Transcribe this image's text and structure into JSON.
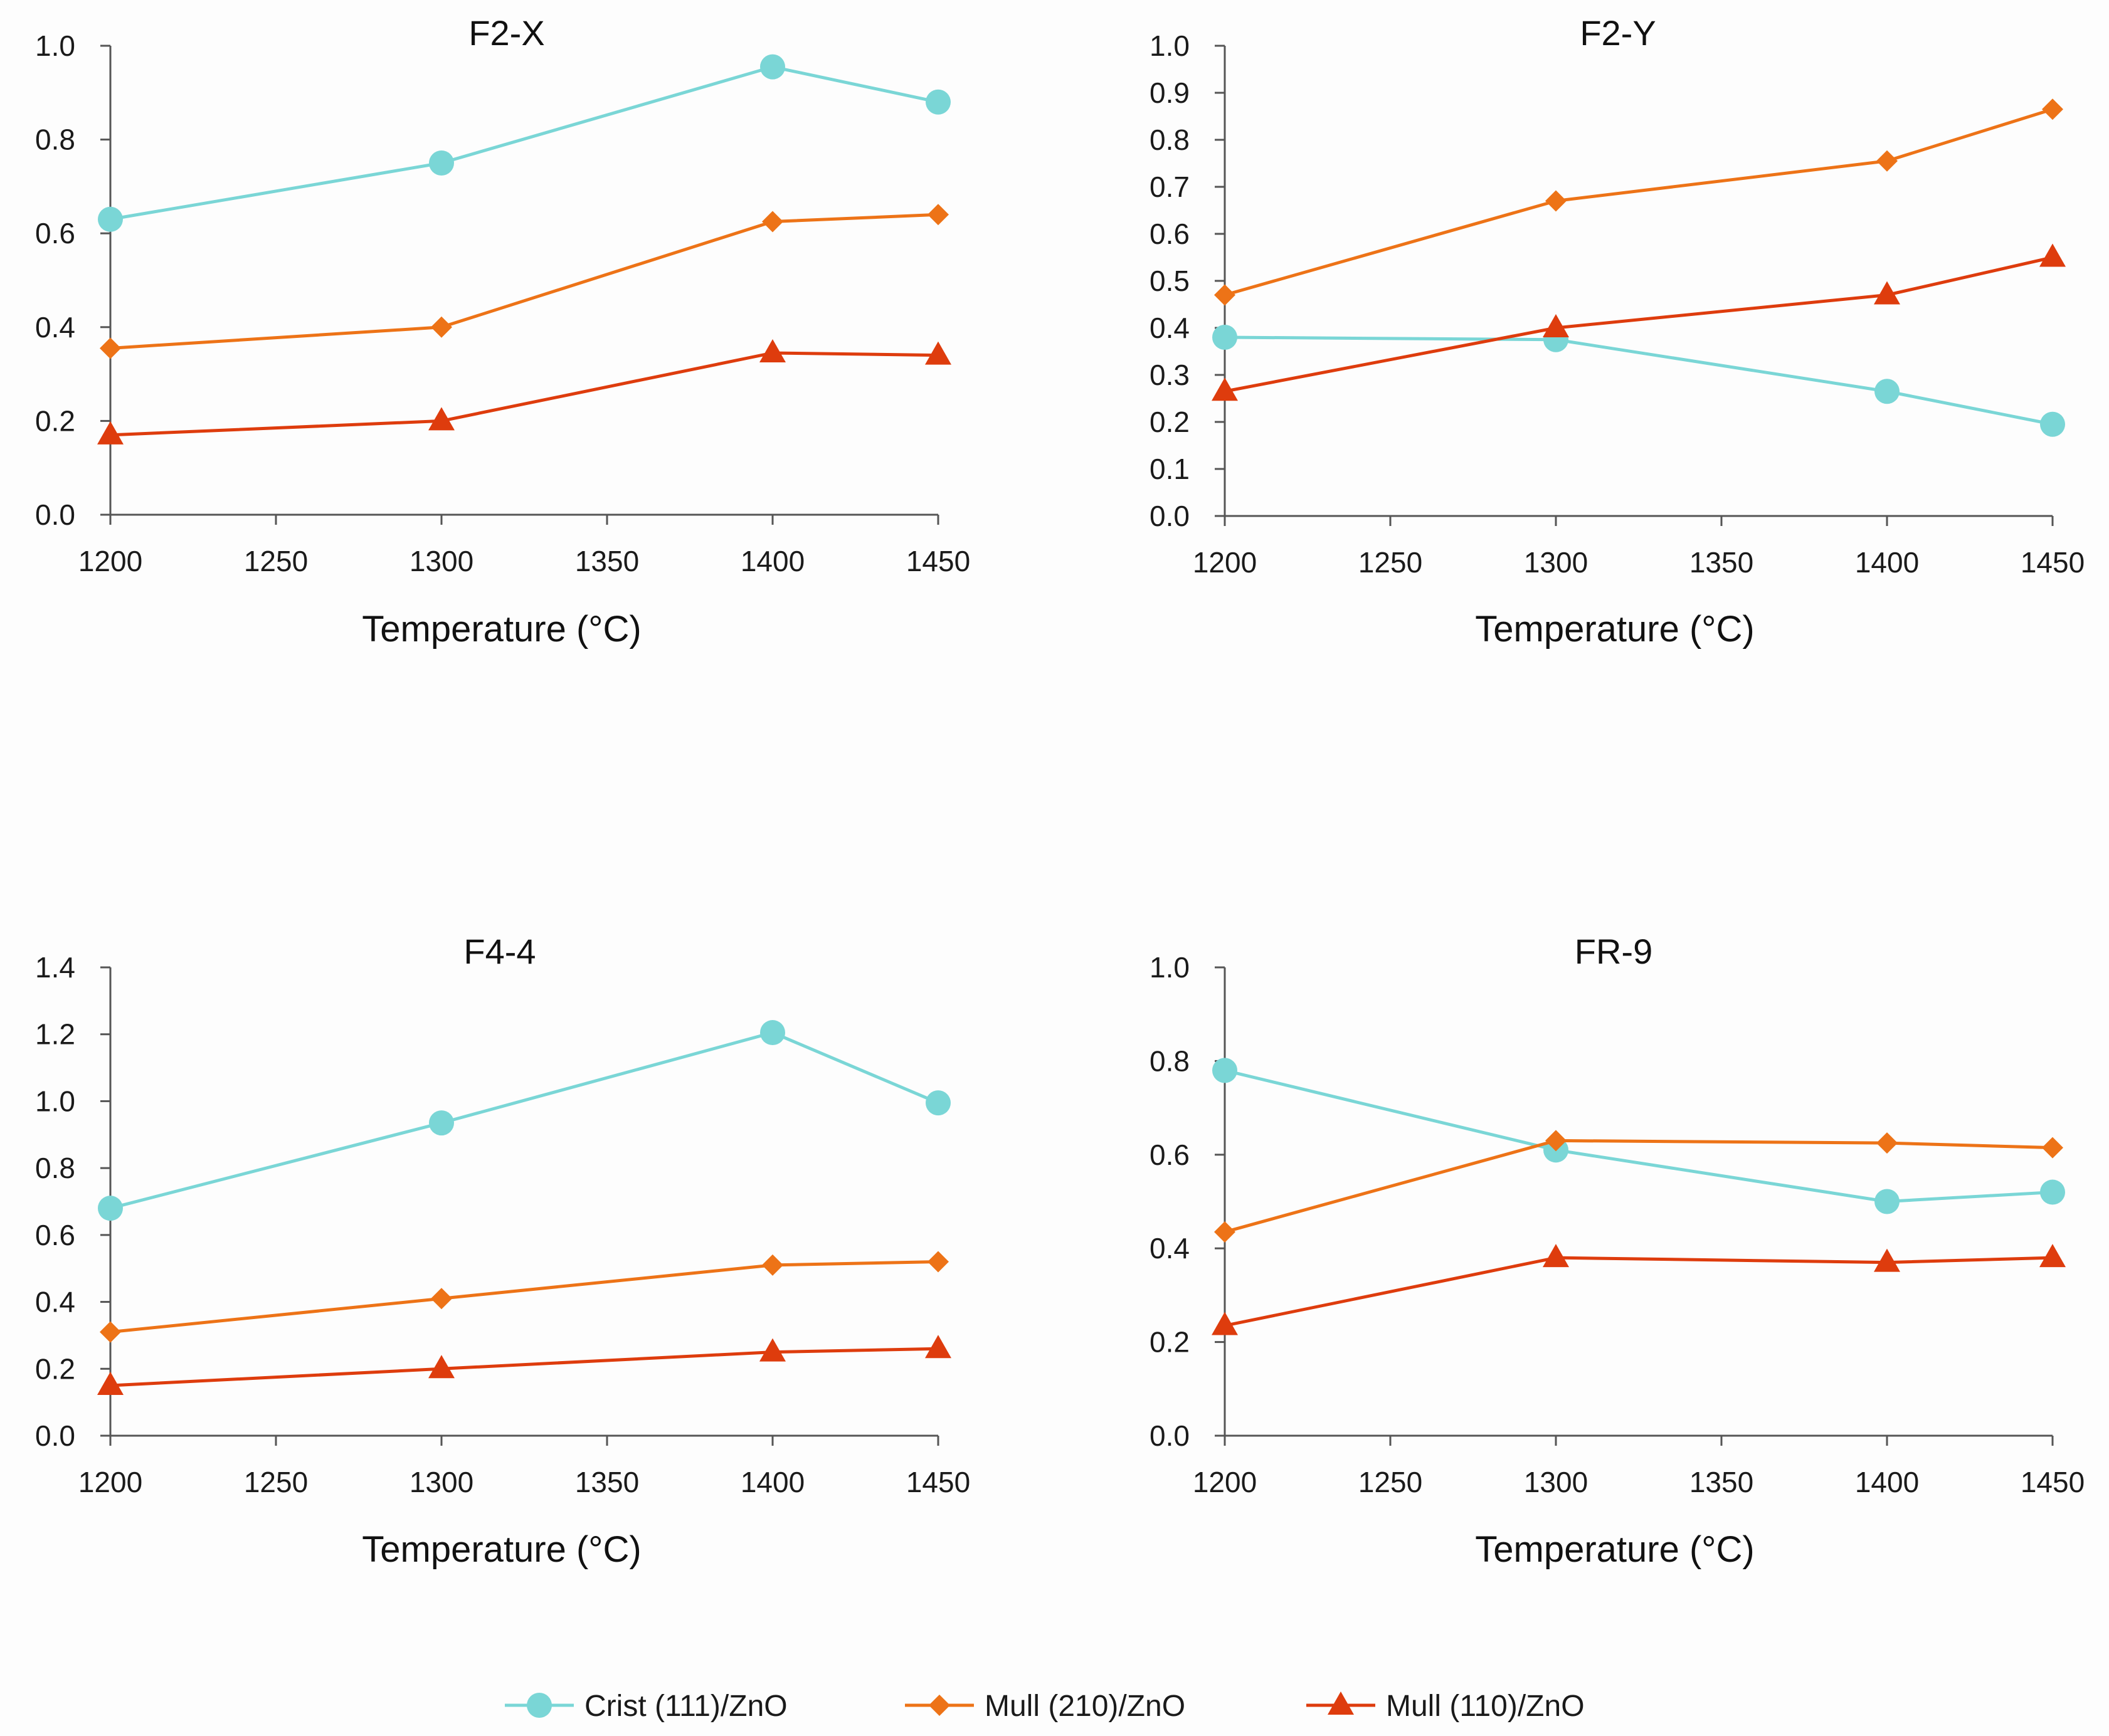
{
  "colors": {
    "crist": "#7ad6d6",
    "mull210": "#ed7317",
    "mull110": "#de3c0d",
    "axis": "#555555"
  },
  "legend": {
    "items": [
      {
        "label": "Crist (111)/ZnO",
        "marker": "circle",
        "color": "#7ad6d6"
      },
      {
        "label": "Mull (210)/ZnO",
        "marker": "diamond",
        "color": "#ed7317"
      },
      {
        "label": "Mull (110)/ZnO",
        "marker": "triangle",
        "color": "#de3c0d"
      }
    ]
  },
  "chart_data": [
    {
      "type": "line",
      "title": "F2-X",
      "xlabel": "Temperature (°C)",
      "ylabel": "",
      "x": [
        1200,
        1300,
        1400,
        1450
      ],
      "xticks": [
        1200,
        1250,
        1300,
        1350,
        1400,
        1450
      ],
      "xlim": [
        1200,
        1450
      ],
      "ylim": [
        0,
        1.0
      ],
      "yticks": [
        "0.0",
        "0.2",
        "0.4",
        "0.6",
        "0.8",
        "1.0"
      ],
      "series": [
        {
          "name": "Crist (111)/ZnO",
          "values": [
            0.63,
            0.75,
            0.955,
            0.88
          ]
        },
        {
          "name": "Mull (210)/ZnO",
          "values": [
            0.355,
            0.4,
            0.625,
            0.64
          ]
        },
        {
          "name": "Mull (110)/ZnO",
          "values": [
            0.17,
            0.2,
            0.345,
            0.34
          ]
        }
      ]
    },
    {
      "type": "line",
      "title": "F2-Y",
      "xlabel": "Temperature (°C)",
      "ylabel": "",
      "x": [
        1200,
        1300,
        1400,
        1450
      ],
      "xticks": [
        1200,
        1250,
        1300,
        1350,
        1400,
        1450
      ],
      "xlim": [
        1200,
        1450
      ],
      "ylim": [
        0,
        1.0
      ],
      "yticks": [
        "0.0",
        "0.1",
        "0.2",
        "0.3",
        "0.4",
        "0.5",
        "0.6",
        "0.7",
        "0.8",
        "0.9",
        "1.0"
      ],
      "series": [
        {
          "name": "Crist (111)/ZnO",
          "values": [
            0.38,
            0.375,
            0.265,
            0.195
          ]
        },
        {
          "name": "Mull (210)/ZnO",
          "values": [
            0.47,
            0.67,
            0.755,
            0.865
          ]
        },
        {
          "name": "Mull (110)/ZnO",
          "values": [
            0.265,
            0.4,
            0.47,
            0.55
          ]
        }
      ]
    },
    {
      "type": "line",
      "title": "F4-4",
      "xlabel": "Temperature (°C)",
      "ylabel": "",
      "x": [
        1200,
        1300,
        1400,
        1450
      ],
      "xticks": [
        1200,
        1250,
        1300,
        1350,
        1400,
        1450
      ],
      "xlim": [
        1200,
        1450
      ],
      "ylim": [
        0,
        1.4
      ],
      "yticks": [
        "0.0",
        "0.2",
        "0.4",
        "0.6",
        "0.8",
        "1.0",
        "1.2",
        "1.4"
      ],
      "series": [
        {
          "name": "Crist (111)/ZnO",
          "values": [
            0.68,
            0.935,
            1.205,
            0.995
          ]
        },
        {
          "name": "Mull (210)/ZnO",
          "values": [
            0.31,
            0.41,
            0.51,
            0.52
          ]
        },
        {
          "name": "Mull (110)/ZnO",
          "values": [
            0.15,
            0.2,
            0.25,
            0.26
          ]
        }
      ]
    },
    {
      "type": "line",
      "title": "FR-9",
      "xlabel": "Temperature (°C)",
      "ylabel": "",
      "x": [
        1200,
        1300,
        1400,
        1450
      ],
      "xticks": [
        1200,
        1250,
        1300,
        1350,
        1400,
        1450
      ],
      "xlim": [
        1200,
        1450
      ],
      "ylim": [
        0,
        1.0
      ],
      "yticks": [
        "0.0",
        "0.2",
        "0.4",
        "0.6",
        "0.8",
        "1.0"
      ],
      "series": [
        {
          "name": "Crist (111)/ZnO",
          "values": [
            0.78,
            0.61,
            0.5,
            0.52
          ]
        },
        {
          "name": "Mull (210)/ZnO",
          "values": [
            0.435,
            0.63,
            0.625,
            0.615
          ]
        },
        {
          "name": "Mull (110)/ZnO",
          "values": [
            0.235,
            0.38,
            0.37,
            0.38
          ]
        }
      ]
    }
  ]
}
